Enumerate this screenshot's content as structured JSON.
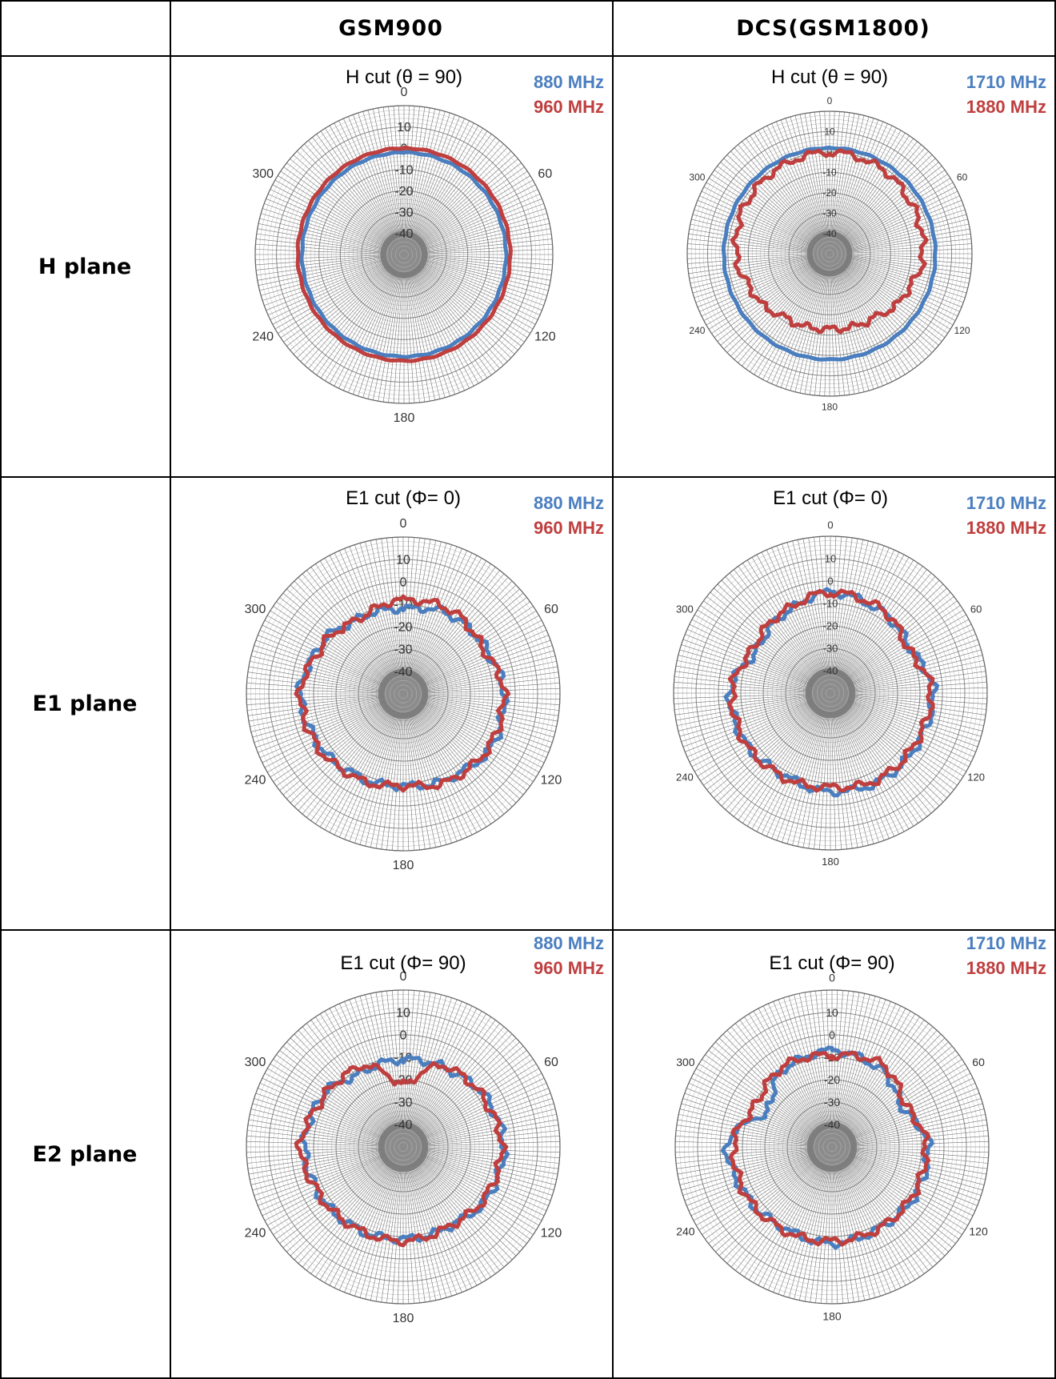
{
  "table": {
    "corner": "",
    "columns": [
      "GSM900",
      "DCS(GSM1800)"
    ],
    "rows": [
      "H plane",
      "E1 plane",
      "E2 plane"
    ]
  },
  "colors": {
    "series_a": "#4a7ebf",
    "series_b": "#bf3f3f",
    "grid": "#777777",
    "center": "#8c8c8c"
  },
  "chart_data": [
    {
      "type": "polar-line",
      "row": "H plane",
      "column": "GSM900",
      "title": "H cut (θ = 90)",
      "radial_ticks": [
        "10",
        "0",
        "-10",
        "-20",
        "-30",
        "-40"
      ],
      "radial_range": [
        -50,
        10
      ],
      "angle_ticks": [
        "0",
        "60",
        "120",
        "180",
        "240",
        "300"
      ],
      "series": [
        {
          "name": "880 MHz",
          "color": "#4a7ebf",
          "angles": [
            0,
            30,
            60,
            90,
            120,
            150,
            180,
            210,
            240,
            270,
            300,
            330
          ],
          "values": [
            -2,
            -2,
            -2,
            -2,
            -2,
            -2,
            -2,
            -2,
            -2,
            -2,
            -2,
            -2
          ]
        },
        {
          "name": "960 MHz",
          "color": "#bf3f3f",
          "angles": [
            0,
            30,
            60,
            90,
            120,
            150,
            180,
            210,
            240,
            270,
            300,
            330
          ],
          "values": [
            0,
            0,
            0,
            0,
            0,
            0,
            0,
            0,
            0,
            0,
            0,
            0
          ]
        }
      ]
    },
    {
      "type": "polar-line",
      "row": "H plane",
      "column": "DCS(GSM1800)",
      "title": "H cut (θ = 90)",
      "radial_ticks": [
        "10",
        "0",
        "-10",
        "-20",
        "-30",
        "-40"
      ],
      "radial_range": [
        -50,
        10
      ],
      "angle_ticks": [
        "0",
        "60",
        "120",
        "180",
        "240",
        "300"
      ],
      "series": [
        {
          "name": "1710 MHz",
          "color": "#4a7ebf",
          "angles": [
            0,
            30,
            60,
            90,
            120,
            150,
            180,
            210,
            240,
            270,
            300,
            330
          ],
          "values": [
            2,
            2,
            2,
            2,
            2,
            2,
            2,
            2,
            2,
            2,
            2,
            2
          ]
        },
        {
          "name": "1880 MHz",
          "color": "#bf3f3f",
          "angles": [
            0,
            30,
            60,
            90,
            120,
            150,
            180,
            210,
            240,
            270,
            300,
            330
          ],
          "values": [
            0,
            -1,
            -3,
            -4,
            -8,
            -12,
            -13,
            -12,
            -8,
            -4,
            -2,
            -1
          ]
        }
      ]
    },
    {
      "type": "polar-line",
      "row": "E1 plane",
      "column": "GSM900",
      "title": "E1 cut (Φ= 0)",
      "radial_ticks": [
        "10",
        "0",
        "-10",
        "-20",
        "-30",
        "-40"
      ],
      "radial_range": [
        -50,
        10
      ],
      "angle_ticks": [
        "0",
        "60",
        "120",
        "180",
        "240",
        "300"
      ],
      "series": [
        {
          "name": "880 MHz",
          "color": "#4a7ebf",
          "angles": [
            0,
            30,
            60,
            90,
            120,
            150,
            180,
            210,
            240,
            270,
            300,
            330
          ],
          "values": [
            -12,
            -9,
            -8,
            -5,
            -4,
            -7,
            -9,
            -8,
            -6,
            -4,
            -7,
            -11
          ]
        },
        {
          "name": "960 MHz",
          "color": "#bf3f3f",
          "angles": [
            0,
            30,
            60,
            90,
            120,
            150,
            180,
            210,
            240,
            270,
            300,
            330
          ],
          "values": [
            -8,
            -7,
            -9,
            -5,
            -5,
            -6,
            -9,
            -7,
            -5,
            -4,
            -8,
            -11
          ]
        }
      ]
    },
    {
      "type": "polar-line",
      "row": "E1 plane",
      "column": "DCS(GSM1800)",
      "title": "E1 cut (Φ= 0)",
      "radial_ticks": [
        "10",
        "0",
        "-10",
        "-20",
        "-30",
        "-40"
      ],
      "radial_range": [
        -50,
        10
      ],
      "angle_ticks": [
        "0",
        "60",
        "120",
        "180",
        "240",
        "300"
      ],
      "series": [
        {
          "name": "1710 MHz",
          "color": "#4a7ebf",
          "angles": [
            0,
            30,
            60,
            90,
            120,
            150,
            180,
            210,
            240,
            270,
            300,
            330
          ],
          "values": [
            -5,
            -7,
            -9,
            -4,
            -5,
            -5,
            -6,
            -8,
            -6,
            -5,
            -12,
            -9
          ]
        },
        {
          "name": "1880 MHz",
          "color": "#bf3f3f",
          "angles": [
            0,
            30,
            60,
            90,
            120,
            150,
            180,
            210,
            240,
            270,
            300,
            330
          ],
          "values": [
            -5,
            -6,
            -10,
            -5,
            -6,
            -6,
            -8,
            -7,
            -6,
            -6,
            -10,
            -8
          ]
        }
      ]
    },
    {
      "type": "polar-line",
      "row": "E2 plane",
      "column": "GSM900",
      "title": "E1 cut (Φ= 90)",
      "radial_ticks": [
        "10",
        "0",
        "-10",
        "-20",
        "-30",
        "-40"
      ],
      "radial_range": [
        -50,
        10
      ],
      "angle_ticks": [
        "0",
        "60",
        "120",
        "180",
        "240",
        "300"
      ],
      "series": [
        {
          "name": "880 MHz",
          "color": "#4a7ebf",
          "angles": [
            0,
            30,
            60,
            90,
            120,
            150,
            180,
            210,
            240,
            270,
            300,
            330
          ],
          "values": [
            -11,
            -10,
            -7,
            -5,
            -6,
            -9,
            -9,
            -8,
            -7,
            -6,
            -7,
            -12
          ]
        },
        {
          "name": "960 MHz",
          "color": "#bf3f3f",
          "angles": [
            0,
            30,
            60,
            90,
            120,
            150,
            180,
            210,
            240,
            270,
            300,
            330
          ],
          "values": [
            -22,
            -9,
            -8,
            -6,
            -7,
            -9,
            -8,
            -8,
            -7,
            -4,
            -8,
            -9
          ]
        }
      ]
    },
    {
      "type": "polar-line",
      "row": "E2 plane",
      "column": "DCS(GSM1800)",
      "title": "E1 cut (Φ= 90)",
      "radial_ticks": [
        "10",
        "0",
        "-10",
        "-20",
        "-30",
        "-40"
      ],
      "radial_range": [
        -50,
        10
      ],
      "angle_ticks": [
        "0",
        "60",
        "120",
        "180",
        "240",
        "300"
      ],
      "series": [
        {
          "name": "1710 MHz",
          "color": "#4a7ebf",
          "angles": [
            0,
            30,
            60,
            90,
            120,
            150,
            180,
            210,
            240,
            270,
            300,
            330
          ],
          "values": [
            -7,
            -9,
            -14,
            -7,
            -7,
            -8,
            -7,
            -8,
            -6,
            -3,
            -17,
            -9
          ]
        },
        {
          "name": "1880 MHz",
          "color": "#bf3f3f",
          "angles": [
            0,
            30,
            60,
            90,
            120,
            150,
            180,
            210,
            240,
            270,
            300,
            330
          ],
          "values": [
            -9,
            -7,
            -12,
            -8,
            -8,
            -8,
            -8,
            -7,
            -6,
            -6,
            -11,
            -8
          ]
        }
      ]
    }
  ]
}
